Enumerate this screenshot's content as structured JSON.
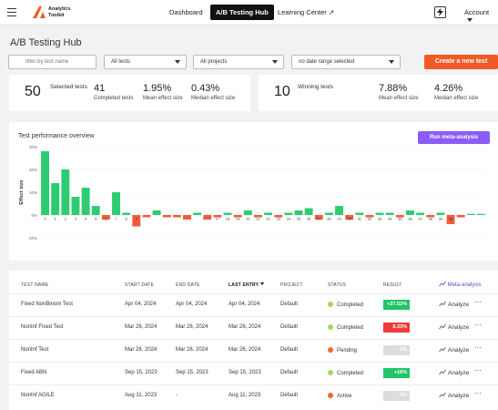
{
  "header": {
    "logo_line1": "Analytics",
    "logo_line2": "Toolkit",
    "nav": [
      "Dashboard",
      "A/B Testing Hub",
      "Learning Center ↗"
    ],
    "account": "Account"
  },
  "page_title": "A/B Testing Hub",
  "filters": {
    "search_placeholder": "filter by test name",
    "tests": "All tests",
    "projects": "All projects",
    "dates": "no date range selected",
    "create_button": "Create a new test"
  },
  "summary_left": {
    "count": "50",
    "count_label": "Selected tests",
    "stats": [
      {
        "value": "41",
        "label": "Completed tests"
      },
      {
        "value": "1.95%",
        "label": "Mean effect size"
      },
      {
        "value": "0.43%",
        "label": "Median effect size"
      }
    ]
  },
  "summary_right": {
    "count": "10",
    "count_label": "Winning tests",
    "stats": [
      {
        "value": "7.88%",
        "label": "Mean effect size"
      },
      {
        "value": "4.26%",
        "label": "Median effect size"
      }
    ]
  },
  "chart": {
    "title": "Test performance overview",
    "button": "Run meta-analysis",
    "chart_data": {
      "type": "bar",
      "ylabel": "Effect size",
      "y_ticks": [
        "30%",
        "20%",
        "10%",
        "0%",
        "-10%"
      ],
      "ylim": [
        -10,
        30
      ],
      "categories": [
        "0",
        "1",
        "2",
        "3",
        "4",
        "5",
        "6",
        "7",
        "8",
        "9",
        "10",
        "11",
        "12",
        "13",
        "14",
        "15",
        "16",
        "17",
        "18",
        "19",
        "20",
        "21",
        "22",
        "23",
        "24",
        "25",
        "26",
        "27",
        "28",
        "29",
        "30",
        "31",
        "32",
        "33",
        "34",
        "35",
        "36",
        "37",
        "38",
        "39",
        "40",
        "41",
        "42",
        "43"
      ],
      "x_tick_labels": [
        "0",
        "1",
        "2",
        "3",
        "4",
        "5",
        "6",
        "7",
        "8",
        "9",
        "",
        "",
        "",
        "",
        "",
        "",
        "",
        "17",
        "18",
        "19",
        "20",
        "21",
        "22",
        "23",
        "24",
        "25",
        "26",
        "27",
        "28",
        "29",
        "30",
        "31",
        "32",
        "33",
        "34",
        "35",
        "36",
        "37",
        "38",
        "39",
        "40",
        "",
        "",
        ""
      ],
      "values": [
        28,
        14,
        20,
        8,
        12,
        4,
        -2,
        10,
        1,
        -5,
        -1,
        2,
        -1,
        -1,
        -2,
        1,
        -2,
        -1,
        1,
        -1,
        2,
        -1,
        1,
        -1,
        1,
        2,
        3,
        -2,
        1,
        4,
        -2,
        1,
        -1,
        1,
        1,
        -1,
        2,
        1,
        -1,
        1,
        -4,
        -1,
        0.5,
        0.5
      ],
      "positive_color": "#2ecc71",
      "negative_color": "#f25a3c"
    }
  },
  "table": {
    "columns": [
      "TEST NAME",
      "START DATE",
      "END DATE",
      "LAST ENTRY",
      "PROJECT",
      "STATUS",
      "RESULT"
    ],
    "meta_link": "Meta-analysis",
    "analyze_label": "Analyze",
    "rows": [
      {
        "name": "Fixed NonBinom Test",
        "start": "Apr 04, 2024",
        "end": "Apr 04, 2024",
        "last": "Apr 04, 2024",
        "project": "Default",
        "status": "Completed",
        "status_color": "#a3d95b",
        "result": "+27.52%",
        "result_color": "#21c46b"
      },
      {
        "name": "NonInf Fixed Test",
        "start": "Mar 26, 2024",
        "end": "Mar 26, 2024",
        "last": "Mar 26, 2024",
        "project": "Default",
        "status": "Completed",
        "status_color": "#a3d95b",
        "result": "8.33%",
        "result_color": "#ef3b3b"
      },
      {
        "name": "NonInf Test",
        "start": "Mar 26, 2024",
        "end": "Mar 26, 2024",
        "last": "Mar 26, 2024",
        "project": "Default",
        "status": "Pending",
        "status_color": "#f26a2e",
        "result": "-2%",
        "result_color": "#dcdcdc"
      },
      {
        "name": "Fixed ABN",
        "start": "Sep 15, 2023",
        "end": "Sep 15, 2023",
        "last": "Sep 15, 2023",
        "project": "Default",
        "status": "Completed",
        "status_color": "#a3d95b",
        "result": "+16%",
        "result_color": "#21c46b"
      },
      {
        "name": "NonInf AGILE",
        "start": "Aug 11, 2023",
        "end": "-",
        "last": "Aug 11, 2023",
        "project": "Default",
        "status": "Active",
        "status_color": "#f26a2e",
        "result": "-4%",
        "result_color": "#dcdcdc"
      }
    ]
  }
}
